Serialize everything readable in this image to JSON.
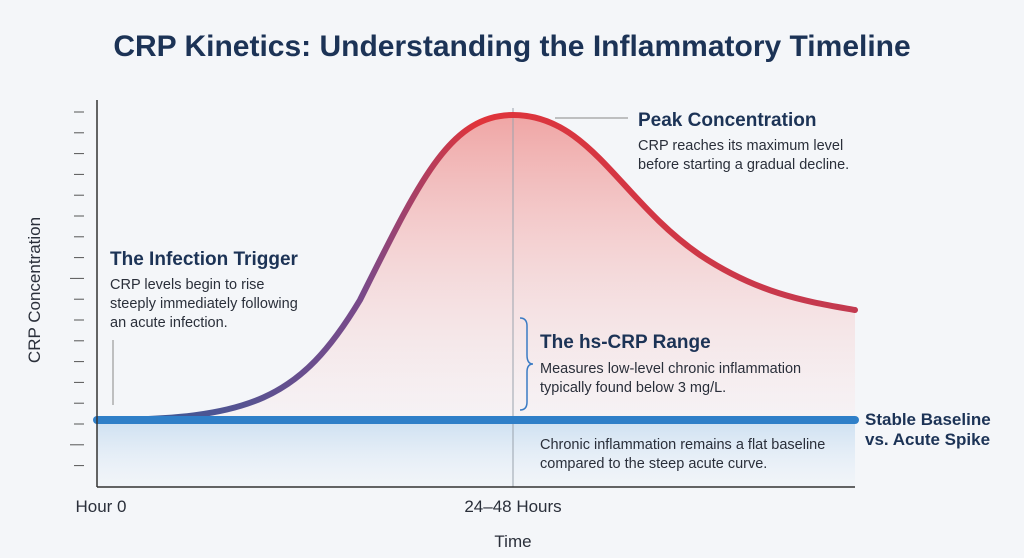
{
  "title": "CRP Kinetics: Understanding the Inflammatory Timeline",
  "y_axis_label": "CRP Concentration",
  "x_axis_label": "Time",
  "x_labels": [
    "Hour 0",
    "24–48 Hours"
  ],
  "annotations": [
    {
      "title": "The Infection Trigger",
      "lines": [
        "CRP levels begin to rise",
        "steeply immediately following",
        "an acute infection."
      ]
    },
    {
      "title": "Peak Concentration",
      "lines": [
        "CRP reaches its maximum level",
        "before starting a gradual decline."
      ]
    },
    {
      "title": "The hs-CRP Range",
      "lines": [
        "Measures low-level chronic inflammation",
        "typically found below 3 mg/L."
      ]
    },
    {
      "title": "Stable Baseline",
      "lines": [
        "vs. Acute Spike"
      ]
    },
    {
      "title": null,
      "lines": [
        "Chronic inflammation remains a flat baseline",
        "compared to the steep acute curve."
      ]
    }
  ]
}
